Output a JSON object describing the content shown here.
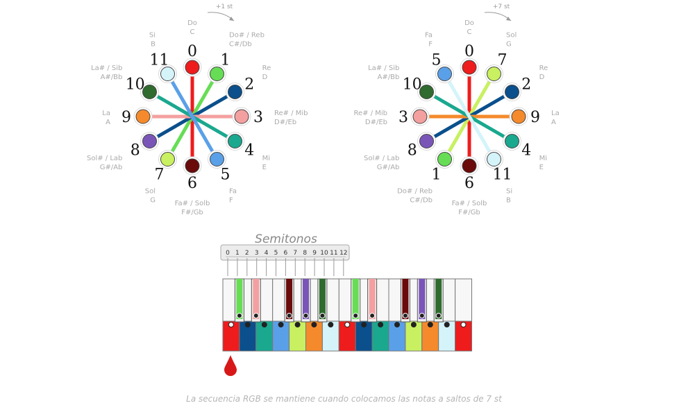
{
  "circles": [
    {
      "arrow_label": "+1 st",
      "positions": [
        {
          "number": "0",
          "color": "#ee1c1c",
          "name_es": "Do",
          "name_en": "C"
        },
        {
          "number": "1",
          "color": "#66dd55",
          "name_es": "Do# / Reb",
          "name_en": "C#/Db"
        },
        {
          "number": "2",
          "color": "#0b4f8c",
          "name_es": "Re",
          "name_en": "D"
        },
        {
          "number": "3",
          "color": "#f4a0a0",
          "name_es": "Re# / Mib",
          "name_en": "D#/Eb"
        },
        {
          "number": "4",
          "color": "#1aa88f",
          "name_es": "Mi",
          "name_en": "E"
        },
        {
          "number": "5",
          "color": "#5aa0e8",
          "name_es": "Fa",
          "name_en": "F"
        },
        {
          "number": "6",
          "color": "#6a0a0a",
          "name_es": "Fa# / Solb",
          "name_en": "F#/Gb"
        },
        {
          "number": "7",
          "color": "#c8f060",
          "name_es": "Sol",
          "name_en": "G"
        },
        {
          "number": "8",
          "color": "#7a55b8",
          "name_es": "Sol# / Lab",
          "name_en": "G#/Ab"
        },
        {
          "number": "9",
          "color": "#f58a2c",
          "name_es": "La",
          "name_en": "A"
        },
        {
          "number": "10",
          "color": "#2f6b2f",
          "name_es": "La# / Sib",
          "name_en": "A#/Bb"
        },
        {
          "number": "11",
          "color": "#d4f4fa",
          "name_es": "Si",
          "name_en": "B"
        }
      ]
    },
    {
      "arrow_label": "+7 st",
      "positions": [
        {
          "number": "0",
          "color": "#ee1c1c",
          "name_es": "Do",
          "name_en": "C"
        },
        {
          "number": "7",
          "color": "#c8f060",
          "name_es": "Sol",
          "name_en": "G"
        },
        {
          "number": "2",
          "color": "#0b4f8c",
          "name_es": "Re",
          "name_en": "D"
        },
        {
          "number": "9",
          "color": "#f58a2c",
          "name_es": "La",
          "name_en": "A"
        },
        {
          "number": "4",
          "color": "#1aa88f",
          "name_es": "Mi",
          "name_en": "E"
        },
        {
          "number": "11",
          "color": "#d4f4fa",
          "name_es": "Si",
          "name_en": "B"
        },
        {
          "number": "6",
          "color": "#6a0a0a",
          "name_es": "Fa# / Solb",
          "name_en": "F#/Gb"
        },
        {
          "number": "1",
          "color": "#66dd55",
          "name_es": "Do# / Reb",
          "name_en": "C#/Db"
        },
        {
          "number": "8",
          "color": "#7a55b8",
          "name_es": "Sol# / Lab",
          "name_en": "G#/Ab"
        },
        {
          "number": "3",
          "color": "#f4a0a0",
          "name_es": "Re# / Mib",
          "name_en": "D#/Eb"
        },
        {
          "number": "10",
          "color": "#2f6b2f",
          "name_es": "La# / Sib",
          "name_en": "A#/Bb"
        },
        {
          "number": "5",
          "color": "#5aa0e8",
          "name_es": "Fa",
          "name_en": "F"
        }
      ]
    }
  ],
  "ruler": {
    "title": "Semitonos",
    "ticks": [
      "0",
      "1",
      "2",
      "3",
      "4",
      "5",
      "6",
      "7",
      "8",
      "9",
      "10",
      "11",
      "12"
    ]
  },
  "keyboard": {
    "white_keys": [
      "#ee1c1c",
      "#0b4f8c",
      "#1aa88f",
      "#5aa0e8",
      "#c8f060",
      "#f58a2c",
      "#d4f4fa",
      "#ee1c1c",
      "#0b4f8c",
      "#1aa88f",
      "#5aa0e8",
      "#c8f060",
      "#f58a2c",
      "#d4f4fa",
      "#ee1c1c"
    ],
    "black_keys": [
      "#66dd55",
      "#f4a0a0",
      "#6a0a0a",
      "#7a55b8",
      "#2f6b2f",
      "#66dd55",
      "#f4a0a0",
      "#6a0a0a",
      "#7a55b8",
      "#2f6b2f"
    ],
    "drop_icon": "blood-drop-icon"
  },
  "caption": "La secuencia RGB se mantiene cuando colocamos las notas a saltos de 7 st"
}
